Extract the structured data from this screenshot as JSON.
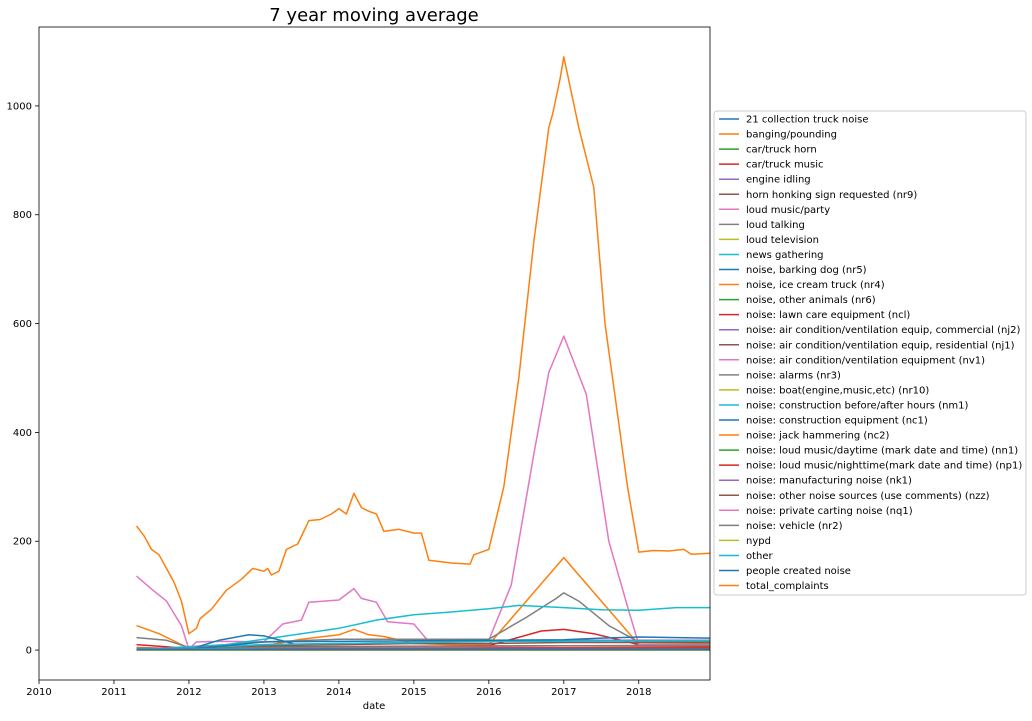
{
  "chart_data": {
    "type": "line",
    "title": "7 year moving average",
    "xlabel": "date",
    "ylabel": "",
    "xlim": [
      2010.0,
      2018.95
    ],
    "ylim": [
      -55,
      1145
    ],
    "grid": false,
    "legend_placement": "outside-right",
    "x_ticks": [
      {
        "value": 2010,
        "label": "2010"
      },
      {
        "value": 2011,
        "label": "2011"
      },
      {
        "value": 2012,
        "label": "2012"
      },
      {
        "value": 2013,
        "label": "2013"
      },
      {
        "value": 2014,
        "label": "2014"
      },
      {
        "value": 2015,
        "label": "2015"
      },
      {
        "value": 2016,
        "label": "2016"
      },
      {
        "value": 2017,
        "label": "2017"
      },
      {
        "value": 2018,
        "label": "2018"
      }
    ],
    "y_ticks": [
      {
        "value": 0,
        "label": "0"
      },
      {
        "value": 200,
        "label": "200"
      },
      {
        "value": 400,
        "label": "400"
      },
      {
        "value": 600,
        "label": "600"
      },
      {
        "value": 800,
        "label": "800"
      },
      {
        "value": 1000,
        "label": "1000"
      }
    ],
    "series": [
      {
        "name": "21 collection truck noise",
        "color": "#1f77b4",
        "points": [
          [
            2011.3,
            1
          ],
          [
            2018.95,
            1
          ]
        ]
      },
      {
        "name": "banging/pounding",
        "color": "#ff7f0e",
        "points": [
          [
            2011.3,
            45
          ],
          [
            2011.6,
            30
          ],
          [
            2011.9,
            10
          ],
          [
            2012.0,
            3
          ],
          [
            2012.5,
            5
          ],
          [
            2013.0,
            8
          ],
          [
            2013.5,
            20
          ],
          [
            2014.0,
            28
          ],
          [
            2014.2,
            38
          ],
          [
            2014.4,
            28
          ],
          [
            2014.6,
            25
          ],
          [
            2015.0,
            12
          ],
          [
            2015.5,
            10
          ],
          [
            2016.0,
            10
          ],
          [
            2016.5,
            90
          ],
          [
            2017.0,
            170
          ],
          [
            2017.5,
            90
          ],
          [
            2018.0,
            10
          ],
          [
            2018.95,
            12
          ]
        ]
      },
      {
        "name": "car/truck horn",
        "color": "#2ca02c",
        "points": [
          [
            2011.3,
            2
          ],
          [
            2012.0,
            1
          ],
          [
            2018.95,
            3
          ]
        ]
      },
      {
        "name": "car/truck music",
        "color": "#d62728",
        "points": [
          [
            2011.3,
            10
          ],
          [
            2011.9,
            4
          ],
          [
            2012.0,
            2
          ],
          [
            2013.0,
            5
          ],
          [
            2015.0,
            6
          ],
          [
            2016.0,
            8
          ],
          [
            2016.7,
            35
          ],
          [
            2017.0,
            38
          ],
          [
            2017.4,
            30
          ],
          [
            2018.0,
            10
          ],
          [
            2018.95,
            10
          ]
        ]
      },
      {
        "name": "engine idling",
        "color": "#9467bd",
        "points": [
          [
            2011.3,
            2
          ],
          [
            2018.95,
            4
          ]
        ]
      },
      {
        "name": "horn honking sign requested (nr9)",
        "color": "#8c564b",
        "points": [
          [
            2011.3,
            0
          ],
          [
            2018.95,
            0
          ]
        ]
      },
      {
        "name": "loud music/party",
        "color": "#e377c2",
        "points": [
          [
            2011.3,
            136
          ],
          [
            2011.5,
            112
          ],
          [
            2011.7,
            90
          ],
          [
            2011.9,
            45
          ],
          [
            2012.0,
            2
          ],
          [
            2012.1,
            15
          ],
          [
            2012.5,
            16
          ],
          [
            2013.0,
            15
          ],
          [
            2013.25,
            48
          ],
          [
            2013.5,
            55
          ],
          [
            2013.6,
            88
          ],
          [
            2014.0,
            92
          ],
          [
            2014.2,
            113
          ],
          [
            2014.3,
            95
          ],
          [
            2014.5,
            88
          ],
          [
            2014.65,
            52
          ],
          [
            2015.0,
            48
          ],
          [
            2015.2,
            15
          ],
          [
            2015.5,
            15
          ],
          [
            2016.0,
            18
          ],
          [
            2016.3,
            120
          ],
          [
            2016.6,
            360
          ],
          [
            2016.8,
            510
          ],
          [
            2017.0,
            577
          ],
          [
            2017.3,
            470
          ],
          [
            2017.6,
            200
          ],
          [
            2017.85,
            80
          ],
          [
            2018.0,
            10
          ],
          [
            2018.95,
            10
          ]
        ]
      },
      {
        "name": "loud talking",
        "color": "#7f7f7f",
        "points": [
          [
            2011.3,
            23
          ],
          [
            2011.7,
            18
          ],
          [
            2012.0,
            5
          ],
          [
            2012.5,
            10
          ],
          [
            2013.0,
            15
          ],
          [
            2014.0,
            20
          ],
          [
            2015.0,
            20
          ],
          [
            2016.0,
            20
          ],
          [
            2016.5,
            60
          ],
          [
            2016.9,
            95
          ],
          [
            2017.0,
            105
          ],
          [
            2017.2,
            90
          ],
          [
            2017.6,
            45
          ],
          [
            2018.0,
            15
          ],
          [
            2018.95,
            15
          ]
        ]
      },
      {
        "name": "loud television",
        "color": "#bcbd22",
        "points": [
          [
            2011.3,
            3
          ],
          [
            2018.95,
            3
          ]
        ]
      },
      {
        "name": "news gathering",
        "color": "#17becf",
        "points": [
          [
            2011.3,
            1
          ],
          [
            2012.5,
            10
          ],
          [
            2013.0,
            20
          ],
          [
            2013.5,
            30
          ],
          [
            2014.0,
            40
          ],
          [
            2014.5,
            55
          ],
          [
            2015.0,
            65
          ],
          [
            2015.5,
            70
          ],
          [
            2016.0,
            76
          ],
          [
            2016.4,
            82
          ],
          [
            2017.0,
            78
          ],
          [
            2017.5,
            74
          ],
          [
            2018.0,
            73
          ],
          [
            2018.5,
            78
          ],
          [
            2018.95,
            78
          ]
        ]
      },
      {
        "name": "noise, barking dog (nr5)",
        "color": "#1f77b4",
        "points": [
          [
            2011.3,
            2
          ],
          [
            2012.0,
            1
          ],
          [
            2012.4,
            18
          ],
          [
            2012.8,
            28
          ],
          [
            2013.0,
            26
          ],
          [
            2013.3,
            15
          ],
          [
            2013.6,
            3
          ],
          [
            2014.0,
            2
          ],
          [
            2018.95,
            2
          ]
        ]
      },
      {
        "name": "noise, ice cream truck (nr4)",
        "color": "#ff7f0e",
        "points": [
          [
            2011.3,
            5
          ],
          [
            2012.0,
            2
          ],
          [
            2018.95,
            5
          ]
        ]
      },
      {
        "name": "noise, other animals (nr6)",
        "color": "#2ca02c",
        "points": [
          [
            2011.3,
            0
          ],
          [
            2018.95,
            0
          ]
        ]
      },
      {
        "name": "noise:  lawn care equipment (ncl)",
        "color": "#d62728",
        "points": [
          [
            2011.3,
            3
          ],
          [
            2018.95,
            5
          ]
        ]
      },
      {
        "name": "noise: air condition/ventilation equip, commercial (nj2)",
        "color": "#9467bd",
        "points": [
          [
            2011.3,
            2
          ],
          [
            2012.0,
            4
          ],
          [
            2013.0,
            10
          ],
          [
            2014.0,
            12
          ],
          [
            2015.0,
            14
          ],
          [
            2016.0,
            16
          ],
          [
            2017.0,
            18
          ],
          [
            2018.0,
            18
          ],
          [
            2018.95,
            18
          ]
        ]
      },
      {
        "name": "noise: air condition/ventilation equip, residential (nj1)",
        "color": "#8c564b",
        "points": [
          [
            2011.3,
            2
          ],
          [
            2012.0,
            3
          ],
          [
            2013.0,
            8
          ],
          [
            2014.0,
            10
          ],
          [
            2015.0,
            12
          ],
          [
            2016.0,
            12
          ],
          [
            2017.0,
            14
          ],
          [
            2018.95,
            14
          ]
        ]
      },
      {
        "name": "noise: air condition/ventilation equipment (nv1)",
        "color": "#e377c2",
        "points": [
          [
            2011.3,
            4
          ],
          [
            2011.9,
            2
          ],
          [
            2012.5,
            3
          ],
          [
            2018.95,
            3
          ]
        ]
      },
      {
        "name": "noise: alarms (nr3)",
        "color": "#7f7f7f",
        "points": [
          [
            2011.3,
            0
          ],
          [
            2018.95,
            0
          ]
        ]
      },
      {
        "name": "noise: boat(engine,music,etc) (nr10)",
        "color": "#bcbd22",
        "points": [
          [
            2011.3,
            0
          ],
          [
            2018.95,
            0
          ]
        ]
      },
      {
        "name": "noise: construction before/after hours (nm1)",
        "color": "#17becf",
        "points": [
          [
            2011.3,
            2
          ],
          [
            2012.0,
            3
          ],
          [
            2013.0,
            10
          ],
          [
            2014.0,
            12
          ],
          [
            2015.0,
            14
          ],
          [
            2016.0,
            16
          ],
          [
            2018.95,
            17
          ]
        ]
      },
      {
        "name": "noise: construction equipment (nc1)",
        "color": "#1f77b4",
        "points": [
          [
            2011.3,
            3
          ],
          [
            2012.0,
            2
          ],
          [
            2012.5,
            8
          ],
          [
            2013.0,
            15
          ],
          [
            2014.0,
            16
          ],
          [
            2015.0,
            17
          ],
          [
            2016.0,
            18
          ],
          [
            2017.0,
            19
          ],
          [
            2017.5,
            22
          ],
          [
            2018.0,
            24
          ],
          [
            2018.95,
            22
          ]
        ]
      },
      {
        "name": "noise: jack hammering (nc2)",
        "color": "#ff7f0e",
        "points": [
          [
            2011.3,
            2
          ],
          [
            2012.0,
            1
          ],
          [
            2018.95,
            3
          ]
        ]
      },
      {
        "name": "noise: loud music/daytime (mark date and time) (nn1)",
        "color": "#2ca02c",
        "points": [
          [
            2011.3,
            1
          ],
          [
            2018.95,
            1
          ]
        ]
      },
      {
        "name": "noise: loud music/nighttime(mark date and time) (np1)",
        "color": "#d62728",
        "points": [
          [
            2011.3,
            2
          ],
          [
            2018.95,
            3
          ]
        ]
      },
      {
        "name": "noise: manufacturing noise (nk1)",
        "color": "#9467bd",
        "points": [
          [
            2011.3,
            1
          ],
          [
            2018.95,
            1
          ]
        ]
      },
      {
        "name": "noise: other noise sources (use comments) (nzz)",
        "color": "#8c564b",
        "points": [
          [
            2011.3,
            3
          ],
          [
            2012.0,
            2
          ],
          [
            2013.0,
            6
          ],
          [
            2015.0,
            7
          ],
          [
            2017.0,
            8
          ],
          [
            2018.95,
            8
          ]
        ]
      },
      {
        "name": "noise: private carting noise (nq1)",
        "color": "#e377c2",
        "points": [
          [
            2011.3,
            1
          ],
          [
            2018.95,
            1
          ]
        ]
      },
      {
        "name": "noise: vehicle (nr2)",
        "color": "#7f7f7f",
        "points": [
          [
            2011.3,
            3
          ],
          [
            2012.0,
            2
          ],
          [
            2013.0,
            5
          ],
          [
            2015.0,
            6
          ],
          [
            2017.0,
            8
          ],
          [
            2018.95,
            9
          ]
        ]
      },
      {
        "name": "nypd",
        "color": "#bcbd22",
        "points": [
          [
            2011.3,
            1
          ],
          [
            2018.95,
            1
          ]
        ]
      },
      {
        "name": "other",
        "color": "#17becf",
        "points": [
          [
            2011.3,
            1
          ],
          [
            2018.95,
            1
          ]
        ]
      },
      {
        "name": "people created noise",
        "color": "#1f77b4",
        "points": [
          [
            2011.3,
            1
          ],
          [
            2018.95,
            1
          ]
        ]
      },
      {
        "name": "total_complaints",
        "color": "#ff7f0e",
        "points": [
          [
            2011.3,
            228
          ],
          [
            2011.4,
            210
          ],
          [
            2011.5,
            185
          ],
          [
            2011.6,
            175
          ],
          [
            2011.7,
            150
          ],
          [
            2011.8,
            125
          ],
          [
            2011.9,
            90
          ],
          [
            2012.0,
            30
          ],
          [
            2012.1,
            40
          ],
          [
            2012.15,
            58
          ],
          [
            2012.3,
            75
          ],
          [
            2012.5,
            110
          ],
          [
            2012.7,
            130
          ],
          [
            2012.85,
            150
          ],
          [
            2013.0,
            145
          ],
          [
            2013.05,
            150
          ],
          [
            2013.1,
            138
          ],
          [
            2013.2,
            145
          ],
          [
            2013.3,
            185
          ],
          [
            2013.45,
            195
          ],
          [
            2013.6,
            238
          ],
          [
            2013.75,
            240
          ],
          [
            2013.9,
            250
          ],
          [
            2014.0,
            260
          ],
          [
            2014.1,
            250
          ],
          [
            2014.2,
            288
          ],
          [
            2014.3,
            262
          ],
          [
            2014.4,
            255
          ],
          [
            2014.5,
            250
          ],
          [
            2014.6,
            218
          ],
          [
            2014.8,
            222
          ],
          [
            2015.0,
            215
          ],
          [
            2015.1,
            215
          ],
          [
            2015.2,
            165
          ],
          [
            2015.5,
            160
          ],
          [
            2015.75,
            158
          ],
          [
            2015.8,
            175
          ],
          [
            2016.0,
            185
          ],
          [
            2016.2,
            300
          ],
          [
            2016.4,
            500
          ],
          [
            2016.6,
            750
          ],
          [
            2016.8,
            960
          ],
          [
            2016.85,
            985
          ],
          [
            2016.95,
            1050
          ],
          [
            2017.0,
            1090
          ],
          [
            2017.2,
            960
          ],
          [
            2017.4,
            850
          ],
          [
            2017.55,
            600
          ],
          [
            2017.7,
            450
          ],
          [
            2017.85,
            300
          ],
          [
            2018.0,
            180
          ],
          [
            2018.2,
            183
          ],
          [
            2018.4,
            182
          ],
          [
            2018.6,
            185
          ],
          [
            2018.7,
            176
          ],
          [
            2018.95,
            178
          ]
        ]
      }
    ]
  }
}
